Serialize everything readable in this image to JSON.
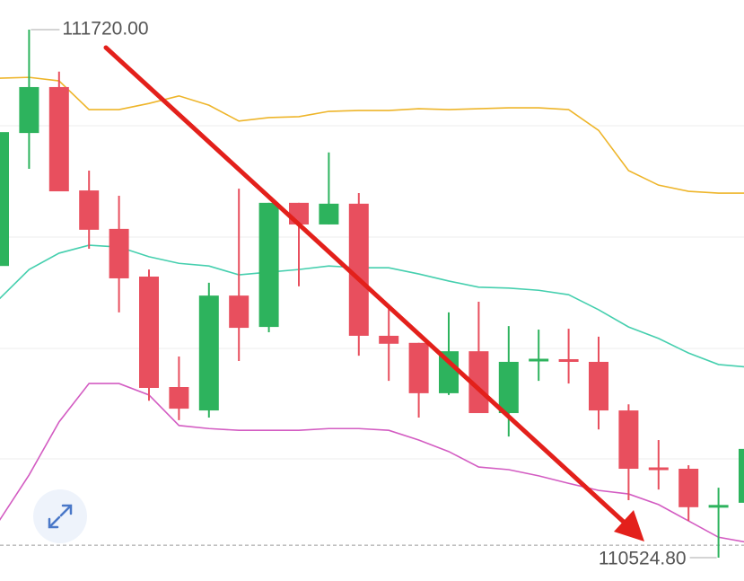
{
  "chart_data": {
    "type": "candlestick",
    "up_color": "#2db35d",
    "down_color": "#e84f5e",
    "open": [
      111185,
      111486,
      111590,
      111356,
      111269,
      111161,
      110911,
      110858,
      111118,
      111047,
      111328,
      111279,
      111326,
      111027,
      111011,
      110897,
      110992,
      110852,
      110970,
      110974,
      110968,
      110858,
      110728,
      110726,
      110639,
      110649
    ],
    "high": [
      111503,
      111720,
      111625,
      111401,
      111344,
      111177,
      110980,
      111147,
      111360,
      111328,
      111328,
      111442,
      111350,
      111094,
      111011,
      111080,
      111104,
      111049,
      111041,
      111043,
      111025,
      110872,
      110791,
      110734,
      110683,
      110790
    ],
    "low": [
      111177,
      111405,
      111354,
      111224,
      111080,
      110880,
      110836,
      110842,
      110970,
      111035,
      111139,
      111279,
      110982,
      110925,
      110842,
      110893,
      110852,
      110799,
      110925,
      110919,
      110815,
      110655,
      110679,
      110608,
      110524.8,
      110640
    ],
    "close": [
      111488,
      111590,
      111354,
      111267,
      111157,
      110909,
      110862,
      111118,
      111045,
      111328,
      111279,
      111326,
      111027,
      111009,
      110897,
      110992,
      110852,
      110968,
      110974,
      110968,
      110858,
      110726,
      110724,
      110639,
      110643,
      110771
    ],
    "bands": {
      "upper": {
        "color": "#eeb52a",
        "values": [
          111610,
          111612,
          111604,
          111539,
          111539,
          111553,
          111570,
          111549,
          111513,
          111521,
          111523,
          111535,
          111537,
          111537,
          111541,
          111539,
          111541,
          111543,
          111543,
          111539,
          111492,
          111401,
          111368,
          111354,
          111350,
          111350
        ]
      },
      "middle": {
        "color": "#45cfae",
        "values": [
          111110,
          111177,
          111214,
          111232,
          111228,
          111206,
          111191,
          111185,
          111165,
          111171,
          111177,
          111185,
          111181,
          111181,
          111167,
          111151,
          111137,
          111135,
          111130,
          111120,
          111086,
          111047,
          111021,
          110988,
          110962,
          110956
        ]
      },
      "lower": {
        "color": "#d35cc2",
        "values": [
          110608,
          110712,
          110832,
          110919,
          110919,
          110893,
          110824,
          110817,
          110813,
          110813,
          110813,
          110817,
          110817,
          110813,
          110791,
          110765,
          110730,
          110724,
          110710,
          110693,
          110677,
          110669,
          110645,
          110608,
          110571,
          110559
        ]
      }
    },
    "price_line": 110553,
    "max_label": "111720.00",
    "min_label": "110524.80"
  }
}
